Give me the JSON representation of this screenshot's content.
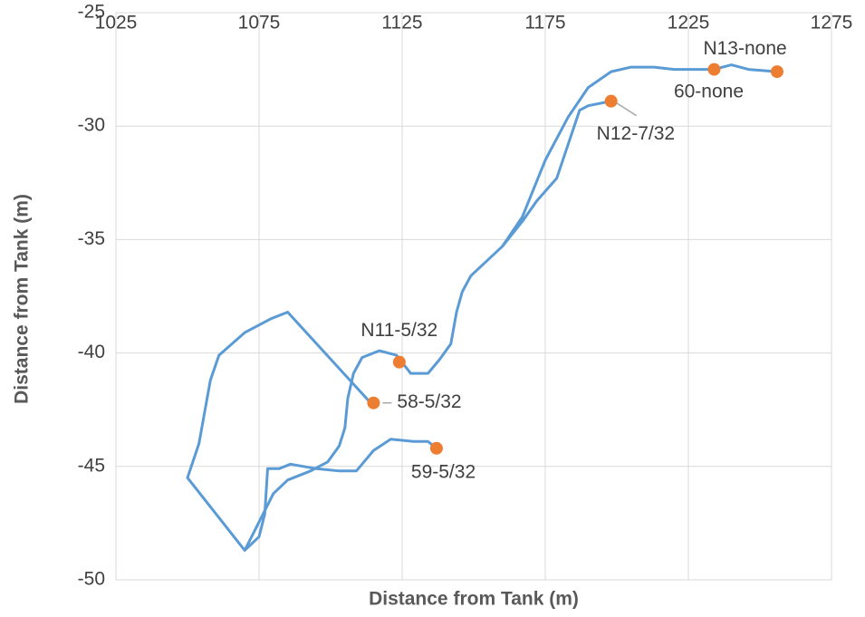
{
  "chart_data": {
    "type": "scatter",
    "x_label": "Distance from Tank (m)",
    "y_label": "Distance from Tank (m)",
    "xlim": [
      1025,
      1275
    ],
    "xticks": [
      1025,
      1075,
      1125,
      1175,
      1225,
      1275
    ],
    "ylim": [
      -50,
      -25
    ],
    "yticks": [
      -50,
      -45,
      -40,
      -35,
      -30,
      -25
    ],
    "grid": true,
    "line": {
      "color": "#5b9bd5",
      "x": [
        1114,
        1085,
        1079,
        1070,
        1061,
        1058,
        1054,
        1050,
        1070,
        1080,
        1085,
        1093,
        1099,
        1103,
        1105,
        1106,
        1108,
        1111,
        1117,
        1123,
        1128,
        1134,
        1138,
        1142,
        1144,
        1146,
        1149,
        1160,
        1167,
        1172,
        1179,
        1187,
        1190,
        1198,
        null,
        1070,
        1075,
        1077,
        1078,
        1082,
        1086,
        1095,
        1103,
        1109,
        1115,
        1121,
        1129,
        1134,
        1137,
        null,
        1160,
        1167,
        1175,
        1183,
        1190,
        1198,
        1205,
        1213,
        1220,
        1234,
        1240,
        1246,
        1256
      ],
      "y": [
        -42.2,
        -38.2,
        -38.5,
        -39.1,
        -40.1,
        -41.2,
        -44.0,
        -45.5,
        -48.7,
        -46.2,
        -45.6,
        -45.2,
        -44.8,
        -44.1,
        -43.3,
        -42.0,
        -40.9,
        -40.2,
        -39.9,
        -40.1,
        -40.9,
        -40.9,
        -40.3,
        -39.6,
        -38.2,
        -37.3,
        -36.6,
        -35.3,
        -34.2,
        -33.3,
        -32.3,
        -29.3,
        -29.1,
        -28.9,
        null,
        -48.7,
        -48.1,
        -47.1,
        -45.1,
        -45.1,
        -44.9,
        -45.1,
        -45.2,
        -45.2,
        -44.3,
        -43.8,
        -43.9,
        -43.9,
        -44.2,
        null,
        -35.3,
        -34.0,
        -31.5,
        -29.6,
        -28.3,
        -27.6,
        -27.4,
        -27.4,
        -27.5,
        -27.5,
        -27.3,
        -27.5,
        -27.6
      ]
    },
    "points": {
      "color": "#ed7d31",
      "x": [
        1124,
        1115,
        1137,
        1198,
        1234,
        1256
      ],
      "y": [
        -40.4,
        -42.2,
        -44.2,
        -28.9,
        -27.5,
        -27.6
      ],
      "labels": [
        "N11-5/32",
        "58-5/32",
        "59-5/32",
        "N12-7/32",
        "N13-none",
        "60-none"
      ]
    }
  }
}
